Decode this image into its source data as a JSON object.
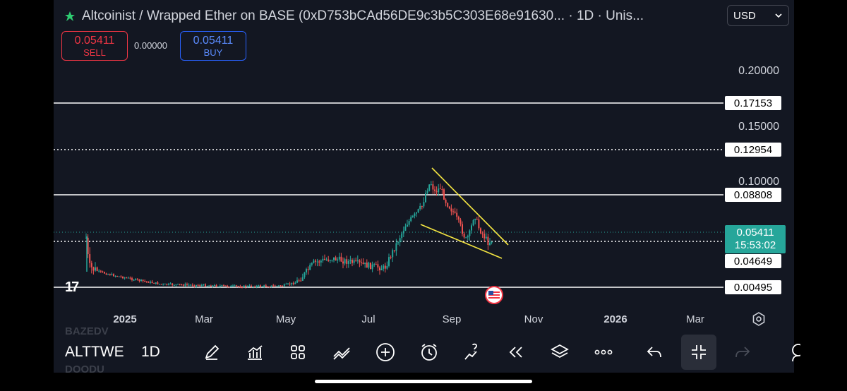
{
  "header": {
    "title": "Altcoinist / Wrapped Ether on BASE (0xD753bCAd56DE9c3b5C303E68e91630... · 1D · Unis...",
    "currency": "USD",
    "sell_price": "0.05411",
    "sell_label": "SELL",
    "spread": "0.00000",
    "buy_price": "0.05411",
    "buy_label": "BUY"
  },
  "y_axis": {
    "ticks": [
      "0.20000",
      "0.15000",
      "0.10000"
    ],
    "levels": [
      "0.17153",
      "0.12954",
      "0.08808",
      "0.04649",
      "0.00495"
    ],
    "current_price": "0.05411",
    "countdown": "15:53:02"
  },
  "x_axis": {
    "ticks": [
      {
        "label": "2025",
        "bold": true
      },
      {
        "label": "Mar",
        "bold": false
      },
      {
        "label": "May",
        "bold": false
      },
      {
        "label": "Jul",
        "bold": false
      },
      {
        "label": "Sep",
        "bold": false
      },
      {
        "label": "Nov",
        "bold": false
      },
      {
        "label": "2026",
        "bold": true
      },
      {
        "label": "Mar",
        "bold": false
      }
    ]
  },
  "toolbar": {
    "symbol": "ALTTWE",
    "interval": "1D",
    "ghost_symbol_prev": "BAZEDV",
    "ghost_symbol_next": "DOODU",
    "tools": [
      "pen-icon",
      "indicators-icon",
      "templates-icon",
      "trend-line-icon",
      "add-icon",
      "alert-icon",
      "idea-icon",
      "replay-icon",
      "layers-icon",
      "more-icon",
      "undo-icon",
      "exit-fullscreen-icon",
      "redo-icon",
      "account-icon"
    ]
  },
  "colors": {
    "background": "#131722",
    "up": "#26a69a",
    "down": "#ef5350",
    "pattern": "#f5e642",
    "level": "#ffffff"
  }
}
